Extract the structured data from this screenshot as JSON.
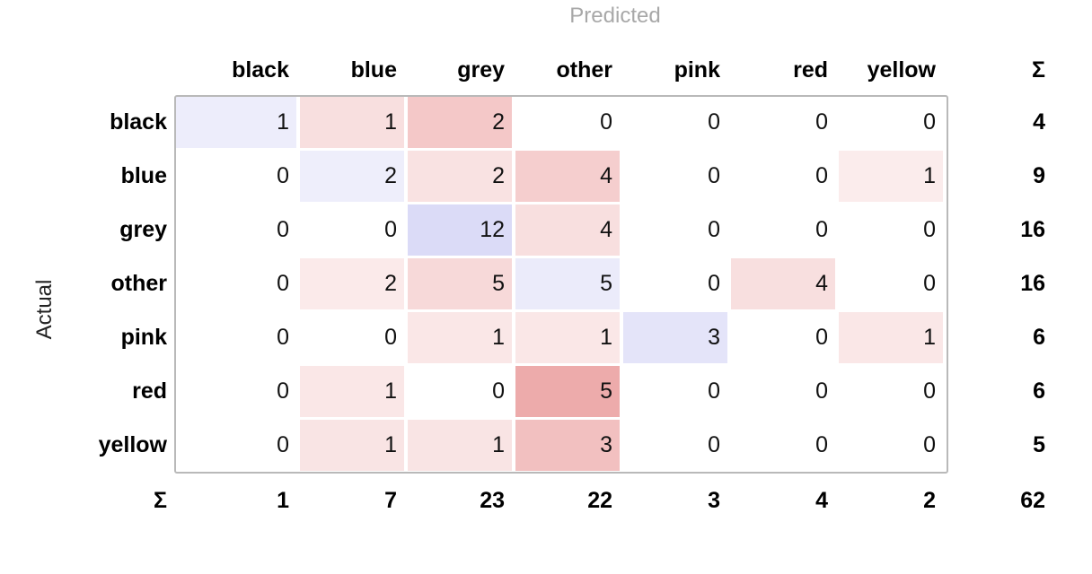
{
  "axis": {
    "predicted": "Predicted",
    "actual": "Actual"
  },
  "columns": [
    "black",
    "blue",
    "grey",
    "other",
    "pink",
    "red",
    "yellow"
  ],
  "rows": [
    "black",
    "blue",
    "grey",
    "other",
    "pink",
    "red",
    "yellow"
  ],
  "sigma": "Σ",
  "matrix": [
    [
      1,
      1,
      2,
      0,
      0,
      0,
      0
    ],
    [
      0,
      2,
      2,
      4,
      0,
      0,
      1
    ],
    [
      0,
      0,
      12,
      4,
      0,
      0,
      0
    ],
    [
      0,
      2,
      5,
      5,
      0,
      4,
      0
    ],
    [
      0,
      0,
      1,
      1,
      3,
      0,
      1
    ],
    [
      0,
      1,
      0,
      5,
      0,
      0,
      0
    ],
    [
      0,
      1,
      1,
      3,
      0,
      0,
      0
    ]
  ],
  "row_totals": [
    4,
    9,
    16,
    16,
    6,
    6,
    5
  ],
  "col_totals": [
    1,
    7,
    23,
    22,
    3,
    4,
    2
  ],
  "grand_total": 62,
  "colors": {
    "diagonal": "#4b4bd6",
    "off_diagonal": "#d94a4a",
    "frame": "#b9b9b9",
    "axis_muted": "#a8a8a8"
  }
}
